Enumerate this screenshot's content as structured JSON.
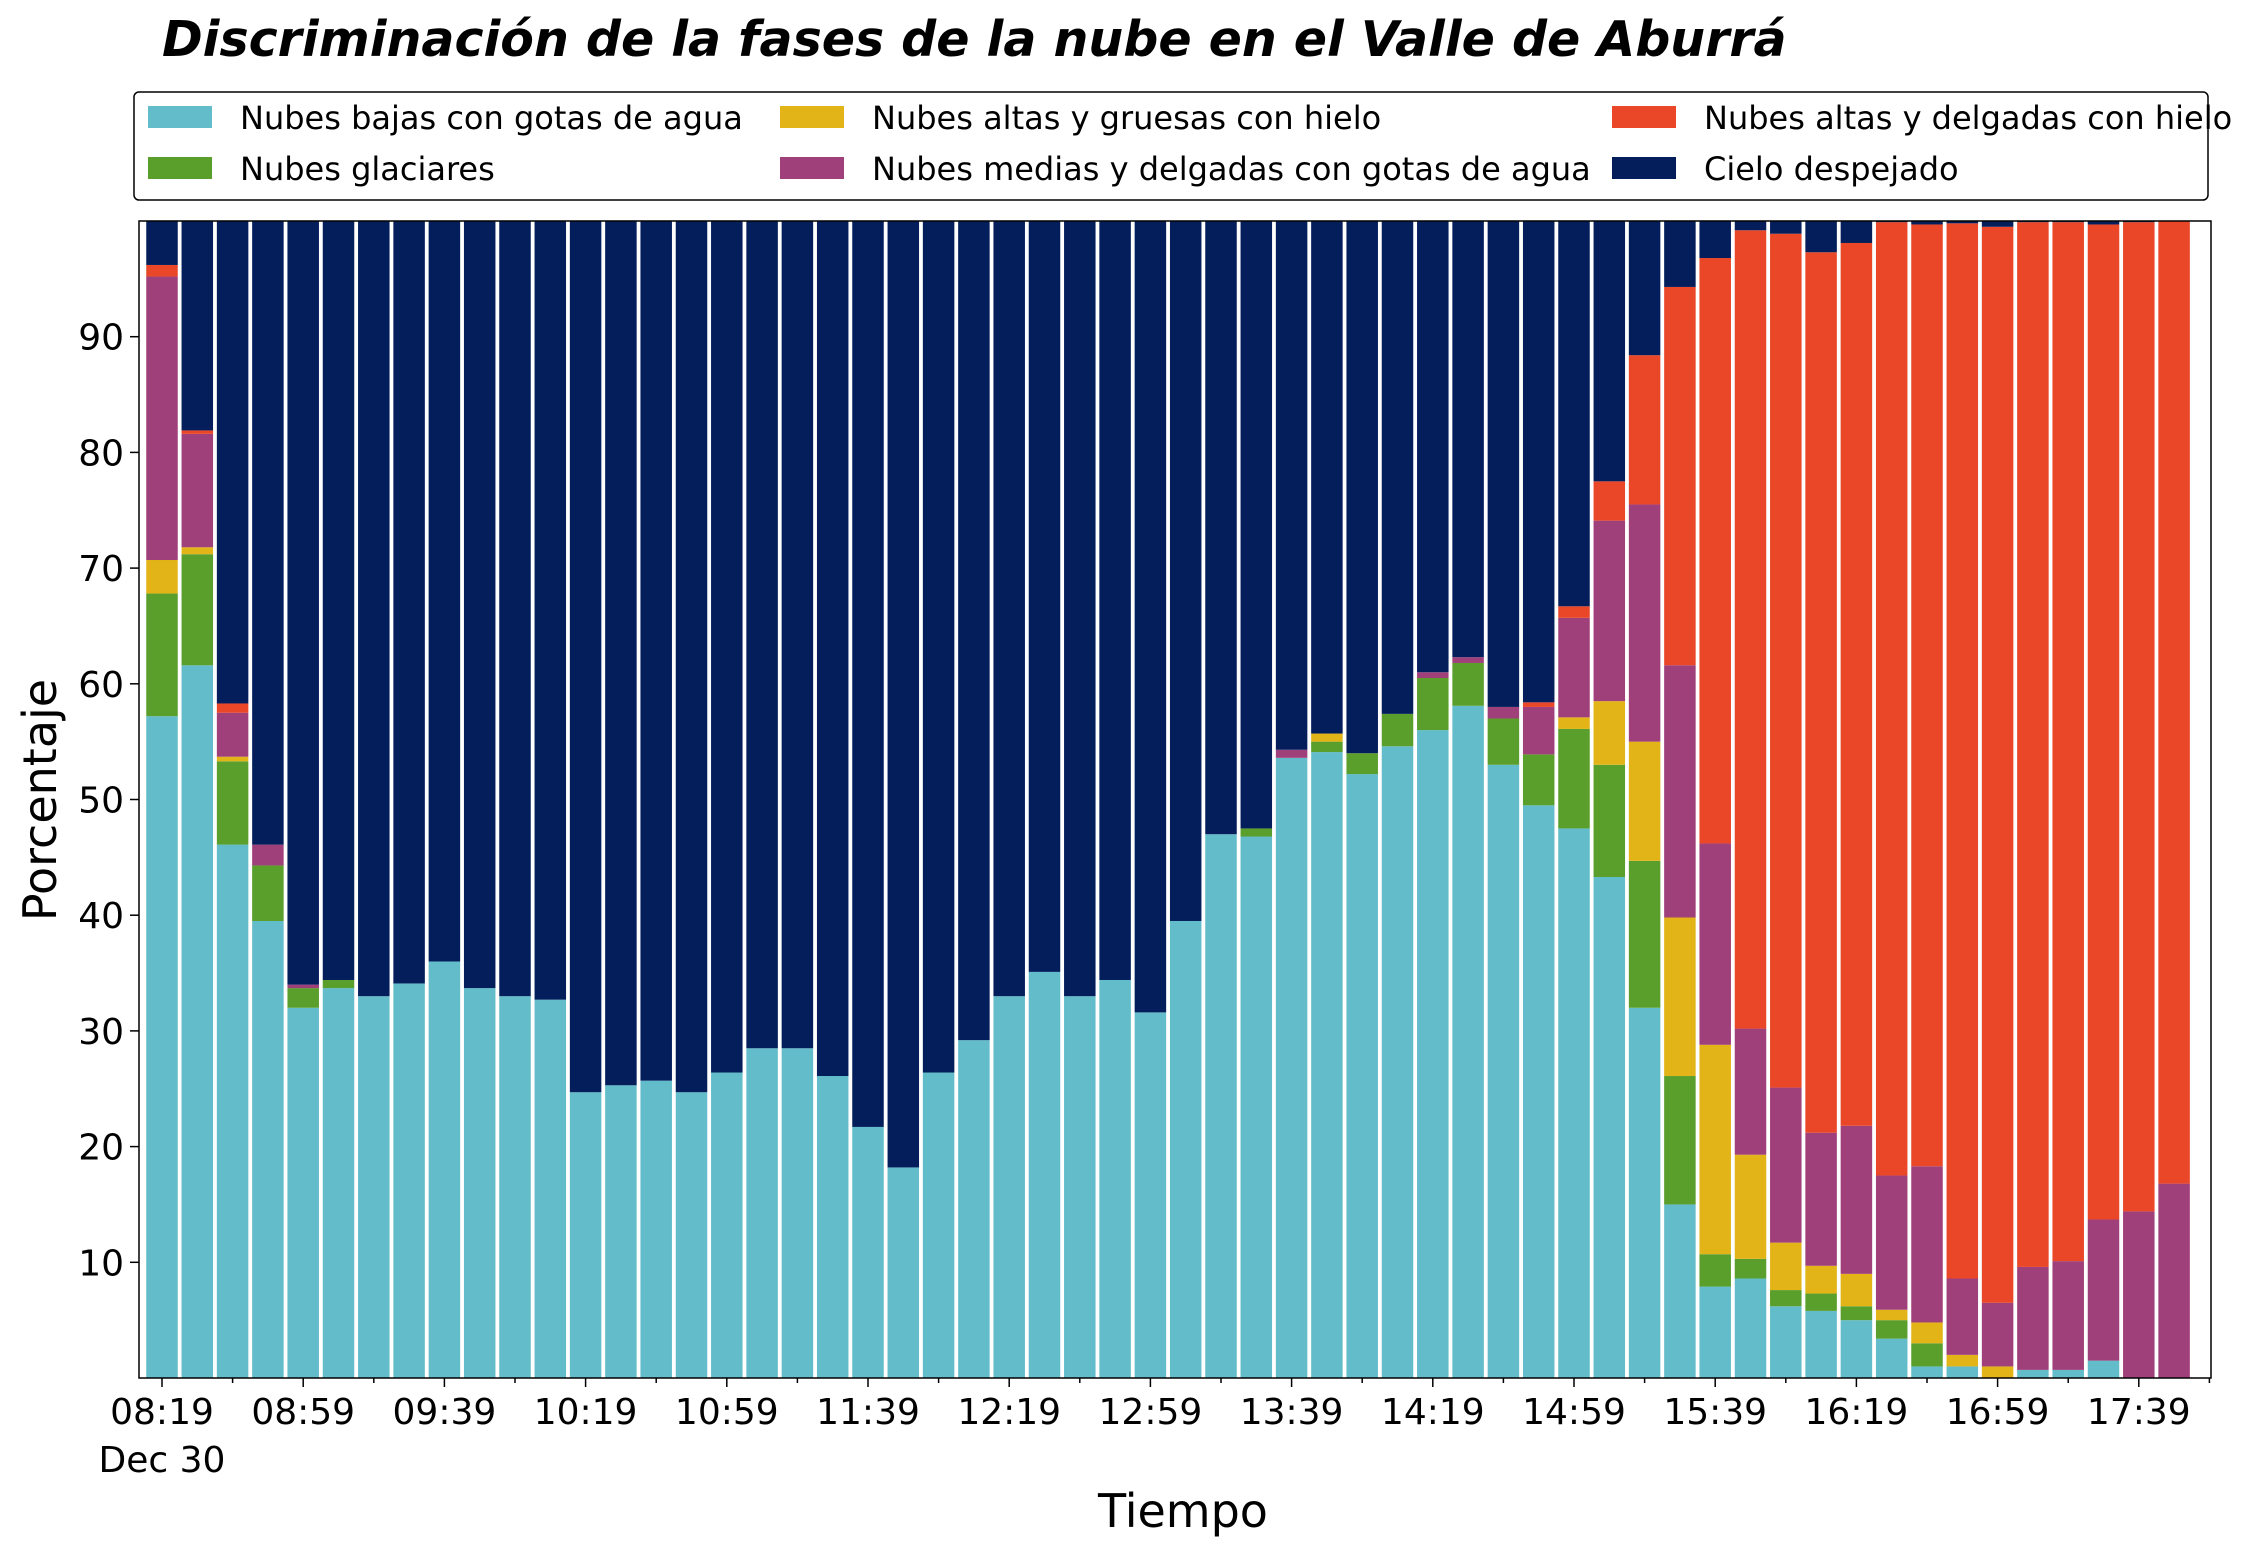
{
  "chart_data": {
    "type": "bar",
    "stacked": true,
    "title": "Discriminación de la fases de la nube en el Valle de Aburrá",
    "xlabel": "Tiempo",
    "ylabel": "Porcentaje",
    "ylim": [
      0,
      100
    ],
    "yticks": [
      10,
      20,
      30,
      40,
      50,
      60,
      70,
      80,
      90
    ],
    "xtick_labels": [
      "08:19",
      "08:59",
      "09:39",
      "10:19",
      "10:59",
      "11:39",
      "12:19",
      "12:59",
      "13:39",
      "14:19",
      "14:59",
      "15:39",
      "16:19",
      "16:59",
      "17:39"
    ],
    "xtick_every": 4,
    "date_label": "Dec 30",
    "grid": false,
    "legend_position": "top",
    "categories": [
      "08:19",
      "08:29",
      "08:39",
      "08:49",
      "08:59",
      "09:09",
      "09:19",
      "09:29",
      "09:39",
      "09:49",
      "09:59",
      "10:09",
      "10:19",
      "10:29",
      "10:39",
      "10:49",
      "10:59",
      "11:09",
      "11:19",
      "11:29",
      "11:39",
      "11:49",
      "11:59",
      "12:09",
      "12:19",
      "12:29",
      "12:39",
      "12:49",
      "12:59",
      "13:09",
      "13:19",
      "13:29",
      "13:39",
      "13:49",
      "13:59",
      "14:09",
      "14:19",
      "14:29",
      "14:39",
      "14:49",
      "14:59",
      "15:09",
      "15:19",
      "15:29",
      "15:39",
      "15:49",
      "15:59",
      "16:09",
      "16:19",
      "16:29",
      "16:39",
      "16:49",
      "16:59",
      "17:09",
      "17:19",
      "17:29",
      "17:39",
      "17:49"
    ],
    "series": [
      {
        "name": "Nubes bajas con gotas de agua",
        "color": "#63BCC9",
        "values": [
          57.2,
          61.6,
          46.1,
          39.5,
          32.0,
          33.7,
          33.0,
          34.1,
          36.0,
          33.7,
          33.0,
          32.7,
          24.7,
          25.3,
          25.7,
          24.7,
          26.4,
          28.5,
          28.5,
          26.1,
          21.7,
          18.2,
          26.4,
          29.2,
          33.0,
          35.1,
          33.0,
          34.4,
          31.6,
          39.5,
          47.0,
          46.8,
          53.6,
          54.1,
          52.2,
          54.6,
          56.0,
          58.1,
          53.0,
          49.5,
          47.5,
          43.3,
          32.0,
          15.0,
          7.9,
          8.6,
          6.2,
          5.8,
          5.0,
          3.4,
          1.0,
          1.0,
          0.0,
          0.7,
          0.7,
          1.5,
          0.0,
          0.0
        ]
      },
      {
        "name": "Nubes glaciares",
        "color": "#5A9E2B",
        "values": [
          10.6,
          9.6,
          7.2,
          4.8,
          1.7,
          0.7,
          0,
          0,
          0,
          0,
          0,
          0,
          0,
          0,
          0,
          0,
          0,
          0,
          0,
          0,
          0,
          0,
          0,
          0,
          0,
          0,
          0,
          0,
          0,
          0,
          0,
          0.7,
          0,
          0.9,
          1.8,
          2.8,
          4.5,
          3.7,
          4.0,
          4.4,
          8.6,
          9.7,
          12.7,
          11.1,
          2.8,
          1.7,
          1.4,
          1.5,
          1.2,
          1.6,
          2.0,
          0,
          0,
          0,
          0,
          0,
          0,
          0
        ]
      },
      {
        "name": "Nubes altas y gruesas con hielo",
        "color": "#E2B417",
        "values": [
          2.9,
          0.6,
          0.4,
          0,
          0,
          0,
          0,
          0,
          0,
          0,
          0,
          0,
          0,
          0,
          0,
          0,
          0,
          0,
          0,
          0,
          0,
          0,
          0,
          0,
          0,
          0,
          0,
          0,
          0,
          0,
          0,
          0,
          0,
          0.7,
          0,
          0,
          0,
          0,
          0,
          0,
          1.0,
          5.5,
          10.3,
          13.7,
          18.1,
          9.0,
          4.1,
          2.4,
          2.8,
          0.9,
          1.8,
          1.0,
          1.0,
          0,
          0,
          0,
          0,
          0
        ]
      },
      {
        "name": "Nubes medias y delgadas con gotas de agua",
        "color": "#A0407A",
        "values": [
          24.5,
          9.8,
          3.8,
          1.8,
          0.3,
          0,
          0,
          0,
          0,
          0,
          0,
          0,
          0,
          0,
          0,
          0,
          0,
          0,
          0,
          0,
          0,
          0,
          0,
          0,
          0,
          0,
          0,
          0,
          0,
          0,
          0,
          0,
          0.7,
          0,
          0,
          0,
          0.5,
          0.5,
          1.0,
          4.1,
          8.6,
          15.6,
          20.5,
          21.8,
          17.4,
          10.9,
          13.4,
          11.5,
          12.8,
          11.6,
          13.5,
          6.6,
          5.5,
          8.9,
          9.4,
          12.2,
          14.4,
          16.8
        ]
      },
      {
        "name": "Nubes altas y delgadas con hielo",
        "color": "#EA4628",
        "values": [
          1.0,
          0.3,
          0.8,
          0,
          0,
          0,
          0,
          0,
          0,
          0,
          0,
          0,
          0,
          0,
          0,
          0,
          0,
          0,
          0,
          0,
          0,
          0,
          0,
          0,
          0,
          0,
          0,
          0,
          0,
          0,
          0,
          0,
          0,
          0,
          0,
          0,
          0,
          0,
          0,
          0.4,
          1.0,
          3.4,
          12.9,
          32.7,
          50.6,
          69.0,
          73.8,
          76.1,
          76.3,
          82.4,
          81.4,
          91.2,
          93.0,
          90.3,
          89.8,
          86.0,
          85.5,
          83.2
        ]
      },
      {
        "name": "Cielo despejado",
        "color": "#041E5C",
        "values": [
          3.8,
          18.1,
          41.7,
          53.9,
          66.0,
          65.6,
          67.0,
          65.9,
          64.0,
          66.3,
          67.0,
          67.3,
          75.3,
          74.7,
          74.3,
          75.3,
          73.6,
          71.5,
          71.5,
          73.9,
          78.3,
          81.8,
          73.6,
          70.8,
          67.0,
          64.9,
          67.0,
          65.6,
          68.4,
          60.5,
          53.0,
          52.5,
          45.7,
          44.3,
          46.0,
          42.6,
          39.0,
          37.7,
          42.0,
          41.6,
          33.3,
          22.5,
          11.6,
          5.7,
          3.2,
          0.8,
          1.1,
          2.7,
          1.9,
          0.1,
          0.3,
          0.2,
          0.5,
          0.1,
          0.1,
          0.3,
          0.1,
          0
        ]
      }
    ]
  }
}
